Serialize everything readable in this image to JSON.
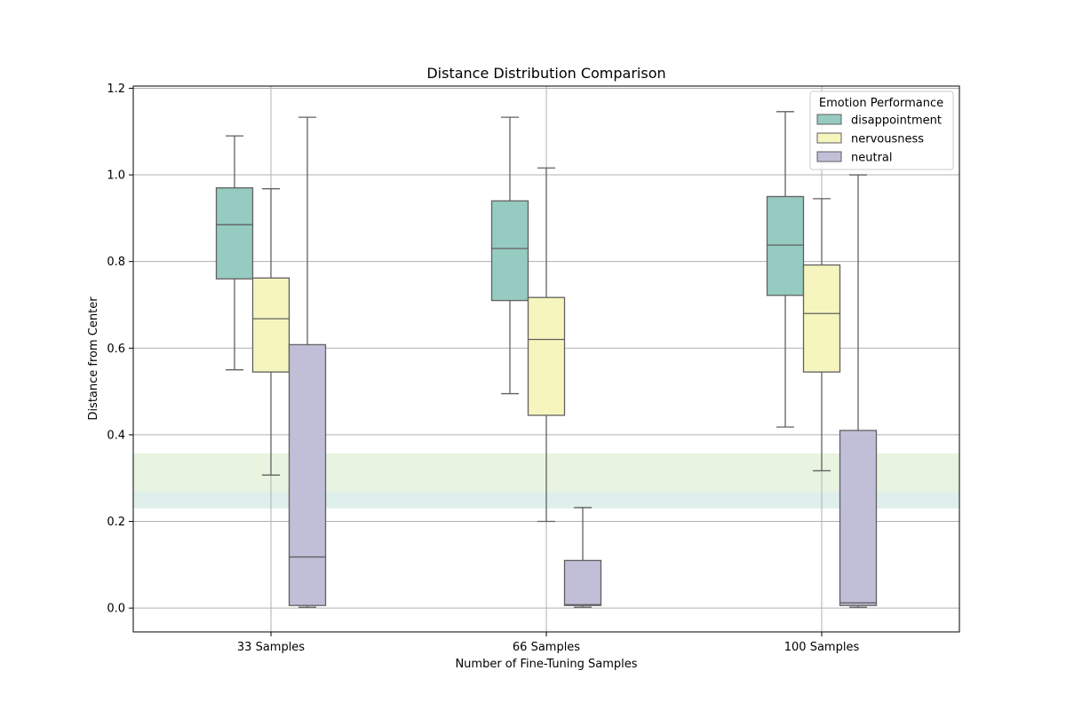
{
  "chart_data": {
    "type": "box",
    "title": "Distance Distribution Comparison",
    "xlabel": "Number of Fine-Tuning Samples",
    "ylabel": "Distance from Center",
    "ylim": [
      -0.055,
      1.205
    ],
    "yticks": [
      0.0,
      0.2,
      0.4,
      0.6,
      0.8,
      1.0,
      1.2
    ],
    "ytick_labels": [
      "0.0",
      "0.2",
      "0.4",
      "0.6",
      "0.8",
      "1.0",
      "1.2"
    ],
    "grid": true,
    "categories": [
      "33 Samples",
      "66 Samples",
      "100 Samples"
    ],
    "legend": {
      "title": "Emotion Performance",
      "placement": "top-right"
    },
    "series": [
      {
        "name": "disappointment",
        "color": "#96cbc1",
        "boxes": [
          {
            "whisker_low": 0.55,
            "q1": 0.76,
            "median": 0.885,
            "q3": 0.97,
            "whisker_high": 1.09
          },
          {
            "whisker_low": 0.495,
            "q1": 0.71,
            "median": 0.83,
            "q3": 0.94,
            "whisker_high": 1.133
          },
          {
            "whisker_low": 0.418,
            "q1": 0.722,
            "median": 0.838,
            "q3": 0.95,
            "whisker_high": 1.146
          }
        ]
      },
      {
        "name": "nervousness",
        "color": "#f6f5be",
        "boxes": [
          {
            "whisker_low": 0.307,
            "q1": 0.545,
            "median": 0.668,
            "q3": 0.762,
            "whisker_high": 0.968
          },
          {
            "whisker_low": 0.2,
            "q1": 0.445,
            "median": 0.62,
            "q3": 0.717,
            "whisker_high": 1.016
          },
          {
            "whisker_low": 0.317,
            "q1": 0.545,
            "median": 0.68,
            "q3": 0.792,
            "whisker_high": 0.945
          }
        ]
      },
      {
        "name": "neutral",
        "color": "#c1bfd8",
        "boxes": [
          {
            "whisker_low": 0.002,
            "q1": 0.006,
            "median": 0.118,
            "q3": 0.608,
            "whisker_high": 1.133
          },
          {
            "whisker_low": 0.002,
            "q1": 0.006,
            "median": 0.008,
            "q3": 0.11,
            "whisker_high": 0.232
          },
          {
            "whisker_low": 0.002,
            "q1": 0.006,
            "median": 0.012,
            "q3": 0.41,
            "whisker_high": 1.0
          }
        ]
      }
    ],
    "bands": [
      {
        "y_from": 0.23,
        "y_to": 0.27,
        "color": "#dff0ec"
      },
      {
        "y_from": 0.27,
        "y_to": 0.357,
        "color": "#e8f4df"
      }
    ]
  }
}
